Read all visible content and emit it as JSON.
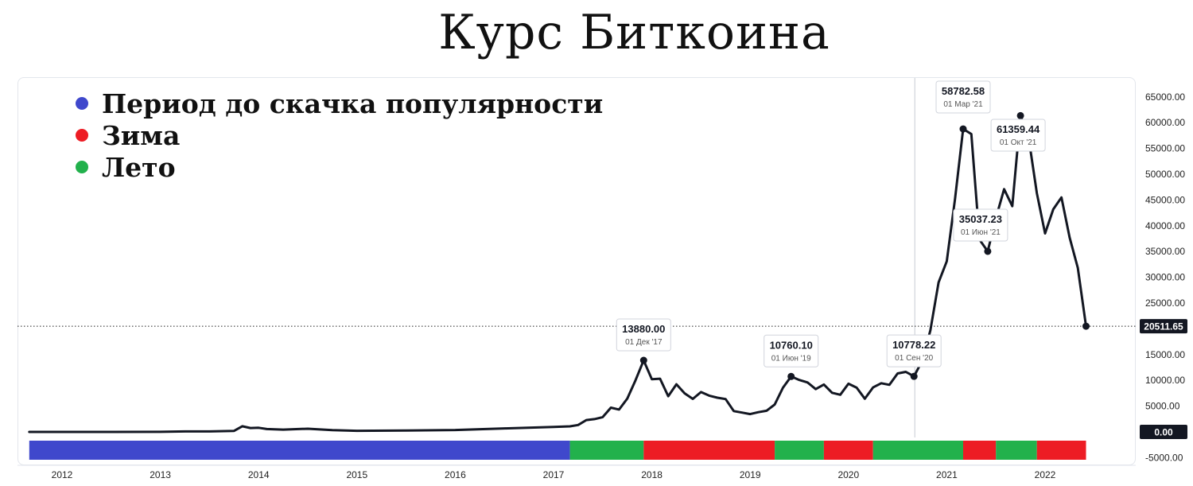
{
  "chart_data": {
    "type": "line",
    "title": "Курс Биткоина",
    "series": [
      {
        "x": [
          "2011-09",
          "2012-01",
          "2012-07",
          "2013-01",
          "2013-04",
          "2013-07",
          "2013-10",
          "2013-11",
          "2013-12",
          "2014-01",
          "2014-02",
          "2014-04",
          "2014-07",
          "2014-10",
          "2015-01",
          "2015-07",
          "2016-01",
          "2016-07",
          "2017-01",
          "2017-03",
          "2017-04",
          "2017-05",
          "2017-06",
          "2017-07",
          "2017-08",
          "2017-09",
          "2017-10",
          "2017-11",
          "2017-12",
          "2018-01",
          "2018-02",
          "2018-03",
          "2018-04",
          "2018-05",
          "2018-06",
          "2018-07",
          "2018-08",
          "2018-09",
          "2018-10",
          "2018-11",
          "2018-12",
          "2019-01",
          "2019-02",
          "2019-03",
          "2019-04",
          "2019-05",
          "2019-06",
          "2019-07",
          "2019-08",
          "2019-09",
          "2019-10",
          "2019-11",
          "2019-12",
          "2020-01",
          "2020-02",
          "2020-03",
          "2020-04",
          "2020-05",
          "2020-06",
          "2020-07",
          "2020-08",
          "2020-09",
          "2020-10",
          "2020-11",
          "2020-12",
          "2021-01",
          "2021-02",
          "2021-03",
          "2021-04",
          "2021-05",
          "2021-06",
          "2021-07",
          "2021-08",
          "2021-09",
          "2021-10",
          "2021-11",
          "2021-12",
          "2022-01",
          "2022-02",
          "2022-03",
          "2022-04",
          "2022-05",
          "2022-06"
        ],
        "y": [
          5,
          5,
          7,
          20,
          100,
          90,
          200,
          1100,
          750,
          800,
          550,
          450,
          620,
          340,
          220,
          285,
          370,
          680,
          960,
          1080,
          1350,
          2300,
          2480,
          2870,
          4700,
          4340,
          6470,
          10000,
          13880,
          10220,
          10330,
          6930,
          9240,
          7490,
          6400,
          7730,
          7030,
          6630,
          6370,
          4040,
          3750,
          3460,
          3830,
          4100,
          5320,
          8570,
          10760,
          10080,
          9600,
          8300,
          9200,
          7600,
          7200,
          9350,
          8580,
          6440,
          8630,
          9450,
          9140,
          11350,
          11650,
          10778,
          13800,
          19700,
          29000,
          33100,
          45100,
          58782,
          57800,
          37300,
          35037,
          41500,
          47100,
          43800,
          61359,
          57000,
          46300,
          38500,
          43200,
          45500,
          37700,
          31800,
          20511
        ]
      }
    ],
    "ylim": [
      -5000,
      67000
    ],
    "yticks": [
      -5000,
      0,
      5000,
      10000,
      15000,
      20000,
      25000,
      30000,
      35000,
      40000,
      45000,
      50000,
      55000,
      60000,
      65000
    ],
    "ytick_labels": [
      "-5000.00",
      "0.00",
      "5000.00",
      "10000.00",
      "15000.00",
      "20000.00",
      "25000.00",
      "30000.00",
      "35000.00",
      "40000.00",
      "45000.00",
      "50000.00",
      "55000.00",
      "60000.00",
      "65000.00"
    ],
    "xticks": [
      "2012",
      "2013",
      "2014",
      "2015",
      "2016",
      "2017",
      "2018",
      "2019",
      "2020",
      "2021",
      "2022"
    ],
    "current_price": {
      "value": 20511.65,
      "label": "20511.65"
    },
    "zero_label": "0.00",
    "annotations": [
      {
        "x": "2017-12",
        "y": 13880,
        "value": "13880.00",
        "date": "01 Дек '17"
      },
      {
        "x": "2019-06",
        "y": 10760.1,
        "value": "10760.10",
        "date": "01 Июн '19"
      },
      {
        "x": "2020-09",
        "y": 10778.22,
        "value": "10778.22",
        "date": "01 Сен '20"
      },
      {
        "x": "2021-03",
        "y": 58782.58,
        "value": "58782.58",
        "date": "01 Мар '21"
      },
      {
        "x": "2021-06",
        "y": 35037.23,
        "value": "35037.23",
        "date": "01 Июн '21"
      },
      {
        "x": "2021-10",
        "y": 61359.44,
        "value": "61359.44",
        "date": "01 Окт '21"
      }
    ],
    "periods": [
      {
        "start": "2011-09",
        "end": "2017-03",
        "type": "pre"
      },
      {
        "start": "2017-03",
        "end": "2017-12",
        "type": "summer"
      },
      {
        "start": "2017-12",
        "end": "2019-04",
        "type": "winter"
      },
      {
        "start": "2019-04",
        "end": "2019-10",
        "type": "summer"
      },
      {
        "start": "2019-10",
        "end": "2020-04",
        "type": "winter"
      },
      {
        "start": "2020-04",
        "end": "2021-03",
        "type": "summer"
      },
      {
        "start": "2021-03",
        "end": "2021-07",
        "type": "winter"
      },
      {
        "start": "2021-07",
        "end": "2021-12",
        "type": "summer"
      },
      {
        "start": "2021-12",
        "end": "2022-06",
        "type": "winter"
      }
    ],
    "period_colors": {
      "pre": "#3f48cc",
      "winter": "#ed1c24",
      "summer": "#22b14c"
    },
    "legend_position": "top-left",
    "grid": false
  },
  "legend": [
    {
      "label": "Период до скачка популярности",
      "color": "#3f48cc"
    },
    {
      "label": "Зима",
      "color": "#ed1c24"
    },
    {
      "label": "Лето",
      "color": "#22b14c"
    }
  ],
  "colors": {
    "line": "#131722",
    "label_box_border": "#d1d4dc",
    "axis_badge": "#131722"
  }
}
